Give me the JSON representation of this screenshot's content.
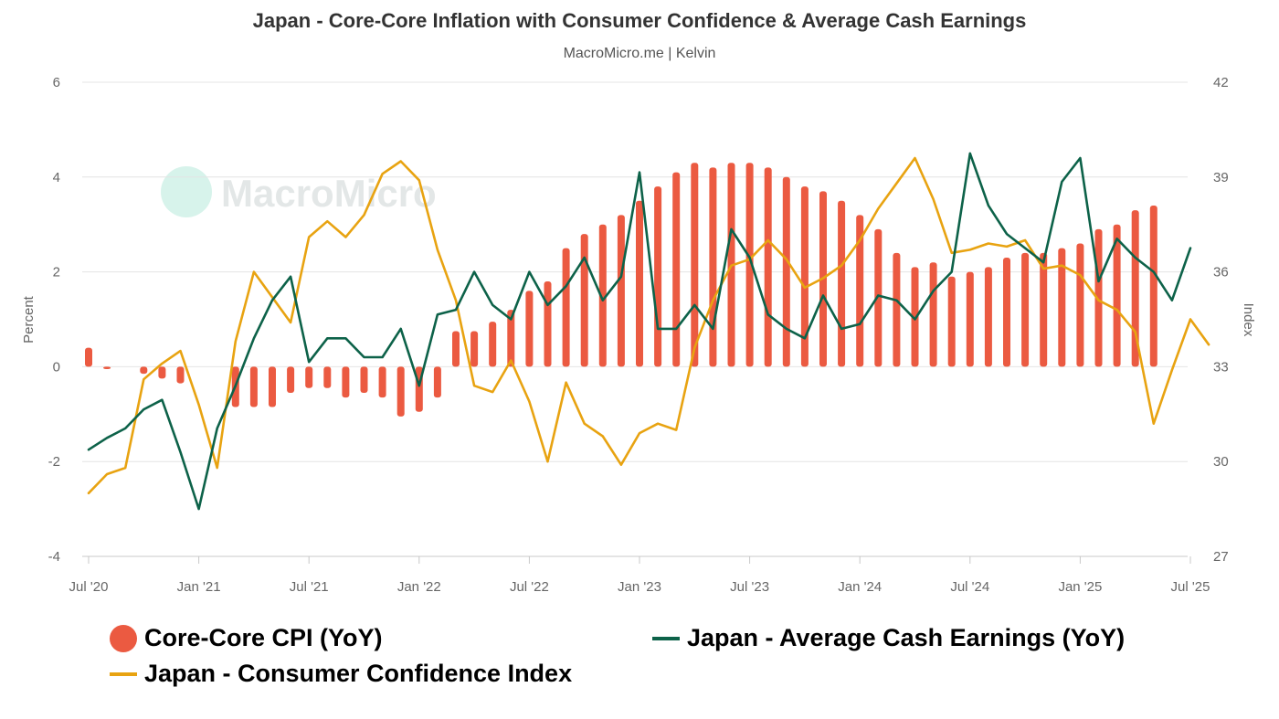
{
  "header": {
    "title": "Japan - Core-Core Inflation with Consumer Confidence & Average Cash Earnings",
    "subtitle": "MacroMicro.me | Kelvin"
  },
  "watermark": {
    "text": "MacroMicro"
  },
  "legend": {
    "cpi": "Core-Core CPI (YoY)",
    "earnings": "Japan - Average Cash Earnings (YoY)",
    "confidence": "Japan - Consumer Confidence Index"
  },
  "colors": {
    "cpi": "#eb5a41",
    "earnings": "#0d6249",
    "confidence": "#e8a311",
    "grid": "#e4e4e4",
    "axis_text": "#666666"
  },
  "chart_data": {
    "type": "bar+line",
    "title": "Japan - Core-Core Inflation with Consumer Confidence & Average Cash Earnings",
    "y_left": {
      "label": "Percent",
      "min": -4,
      "max": 6,
      "ticks": [
        6,
        4,
        2,
        0,
        -2,
        -4
      ]
    },
    "y_right": {
      "label": "Index",
      "min": 27,
      "max": 42,
      "ticks": [
        42,
        39,
        36,
        33,
        30,
        27
      ]
    },
    "x_start": "Jul 2020",
    "x_ticks": [
      "Jul '20",
      "Jan '21",
      "Jul '21",
      "Jan '22",
      "Jul '22",
      "Jan '23",
      "Jul '23",
      "Jan '24",
      "Jul '24",
      "Jan '25",
      "Jul '25"
    ],
    "x_tick_index": [
      0,
      6,
      12,
      18,
      24,
      30,
      36,
      42,
      48,
      54,
      60
    ],
    "series": [
      {
        "name": "Core-Core CPI (YoY)",
        "type": "bar",
        "axis": "left",
        "start_index": 0,
        "values": [
          0.4,
          -0.05,
          null,
          -0.15,
          -0.25,
          -0.35,
          null,
          null,
          -0.85,
          -0.85,
          -0.85,
          -0.55,
          -0.45,
          -0.45,
          -0.65,
          -0.55,
          -0.65,
          -1.05,
          -0.95,
          -0.65,
          0.75,
          0.75,
          0.95,
          1.2,
          1.6,
          1.8,
          2.5,
          2.8,
          3.0,
          3.2,
          3.5,
          3.8,
          4.1,
          4.3,
          4.2,
          4.3,
          4.3,
          4.2,
          4.0,
          3.8,
          3.7,
          3.5,
          3.2,
          2.9,
          2.4,
          2.1,
          2.2,
          1.9,
          2.0,
          2.1,
          2.3,
          2.4,
          2.4,
          2.5,
          2.6,
          2.9,
          3.0,
          3.3,
          3.4
        ]
      },
      {
        "name": "Japan - Average Cash Earnings (YoY)",
        "type": "line",
        "axis": "left",
        "start_index": 0,
        "values": [
          -1.75,
          -1.5,
          -1.3,
          -0.9,
          -0.7,
          -1.8,
          -3.0,
          -1.3,
          -0.4,
          0.6,
          1.4,
          1.9,
          0.1,
          0.6,
          0.6,
          0.2,
          0.2,
          0.8,
          -0.4,
          1.1,
          1.2,
          2.0,
          1.3,
          1.0,
          2.0,
          1.3,
          1.7,
          2.3,
          1.4,
          1.9,
          4.1,
          0.8,
          0.8,
          1.3,
          0.8,
          2.9,
          2.3,
          1.1,
          0.8,
          0.6,
          1.5,
          0.8,
          0.9,
          1.5,
          1.4,
          1.0,
          1.6,
          2.0,
          4.5,
          3.4,
          2.8,
          2.5,
          2.2,
          3.9,
          4.4,
          1.8,
          2.7,
          2.3,
          2.0,
          1.4,
          2.5
        ]
      },
      {
        "name": "Japan - Consumer Confidence Index",
        "type": "line",
        "axis": "right",
        "start_index": 0,
        "values": [
          29.0,
          29.6,
          29.8,
          32.6,
          33.1,
          33.5,
          31.8,
          29.8,
          33.8,
          36.0,
          35.2,
          34.4,
          37.1,
          37.6,
          37.1,
          37.8,
          39.1,
          39.5,
          38.9,
          36.7,
          35.1,
          32.4,
          32.2,
          33.2,
          31.9,
          30.0,
          32.5,
          31.2,
          30.8,
          29.9,
          30.9,
          31.2,
          31.0,
          33.6,
          35.1,
          36.2,
          36.4,
          37.0,
          36.4,
          35.5,
          35.8,
          36.2,
          37.0,
          38.0,
          38.8,
          39.6,
          38.3,
          36.6,
          36.7,
          36.9,
          36.8,
          37.0,
          36.1,
          36.2,
          35.9,
          35.1,
          34.8,
          34.1,
          31.2,
          32.9,
          34.5,
          33.7
        ]
      }
    ]
  }
}
